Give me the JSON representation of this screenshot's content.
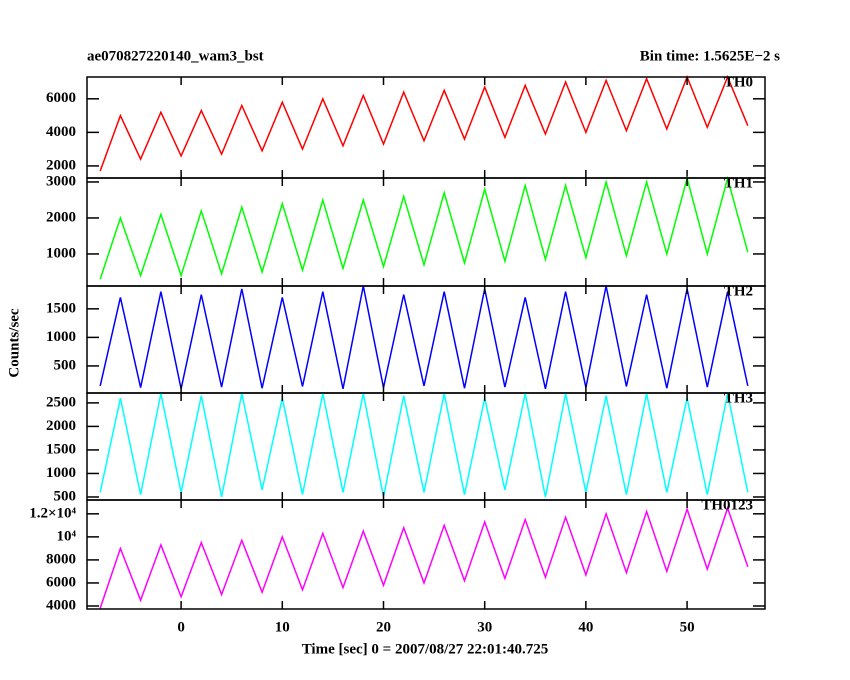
{
  "chart_data": {
    "type": "line",
    "title": "ae070827220140_wam3_bst",
    "subtitle": "Bin time: 1.5625E−2 s",
    "xlabel": "Time [sec] 0 = 2007/08/27 22:01:40.725",
    "ylabel": "Counts/sec",
    "xlim": [
      -9.3,
      57.7
    ],
    "xticks": [
      0,
      10,
      20,
      30,
      40,
      50
    ],
    "x": [
      -8,
      -6,
      -4,
      -2,
      0,
      2,
      4,
      6,
      8,
      10,
      12,
      14,
      16,
      18,
      20,
      22,
      24,
      26,
      28,
      30,
      32,
      34,
      36,
      38,
      40,
      42,
      44,
      46,
      48,
      50,
      52,
      54,
      56
    ],
    "panels": [
      {
        "name": "TH0",
        "color": "#ff0000",
        "ylim": [
          1280,
          7300
        ],
        "yticks": [
          2000,
          4000,
          6000
        ],
        "values": [
          1700,
          5000,
          2400,
          5200,
          2600,
          5300,
          2700,
          5600,
          2900,
          5800,
          3000,
          6000,
          3200,
          6200,
          3300,
          6400,
          3500,
          6500,
          3600,
          6700,
          3700,
          6800,
          3900,
          7000,
          4000,
          7100,
          4100,
          7200,
          4200,
          7300,
          4300,
          7300,
          4400
        ]
      },
      {
        "name": "TH1",
        "color": "#00ff00",
        "ylim": [
          110,
          3110
        ],
        "yticks": [
          1000,
          2000,
          3000
        ],
        "values": [
          300,
          2000,
          400,
          2100,
          400,
          2200,
          450,
          2300,
          500,
          2400,
          550,
          2500,
          600,
          2500,
          650,
          2600,
          700,
          2700,
          750,
          2800,
          800,
          2900,
          850,
          2900,
          900,
          3000,
          950,
          3000,
          1000,
          3100,
          1000,
          3100,
          1050
        ]
      },
      {
        "name": "TH2",
        "color": "#0000ff",
        "ylim": [
          26,
          1900
        ],
        "yticks": [
          500,
          1000,
          1500
        ],
        "values": [
          150,
          1700,
          120,
          1800,
          100,
          1750,
          130,
          1850,
          110,
          1700,
          140,
          1800,
          100,
          1900,
          120,
          1750,
          150,
          1800,
          110,
          1850,
          130,
          1700,
          100,
          1800,
          120,
          1900,
          140,
          1750,
          110,
          1850,
          130,
          1800,
          150
        ]
      },
      {
        "name": "TH3",
        "color": "#00ffff",
        "ylim": [
          436,
          2710
        ],
        "yticks": [
          500,
          1000,
          1500,
          2000,
          2500
        ],
        "values": [
          600,
          2600,
          550,
          2700,
          600,
          2650,
          500,
          2700,
          650,
          2600,
          550,
          2700,
          600,
          2700,
          500,
          2650,
          600,
          2700,
          550,
          2600,
          650,
          2700,
          500,
          2700,
          600,
          2650,
          550,
          2700,
          600,
          2600,
          550,
          2700,
          600
        ]
      },
      {
        "name": "TH0123",
        "color": "#ff00ff",
        "ylim": [
          3740,
          13200
        ],
        "yticks": [
          4000,
          6000,
          8000,
          {
            "value": 10000,
            "label": "10⁴"
          },
          {
            "value": 12000,
            "label": "1.2×10⁴"
          }
        ],
        "values": [
          3800,
          9000,
          4500,
          9300,
          4800,
          9500,
          5000,
          9700,
          5200,
          10000,
          5400,
          10300,
          5600,
          10500,
          5800,
          10800,
          6000,
          11000,
          6200,
          11300,
          6400,
          11500,
          6500,
          11700,
          6700,
          12000,
          6900,
          12200,
          7000,
          12400,
          7200,
          12500,
          7400
        ]
      }
    ]
  }
}
